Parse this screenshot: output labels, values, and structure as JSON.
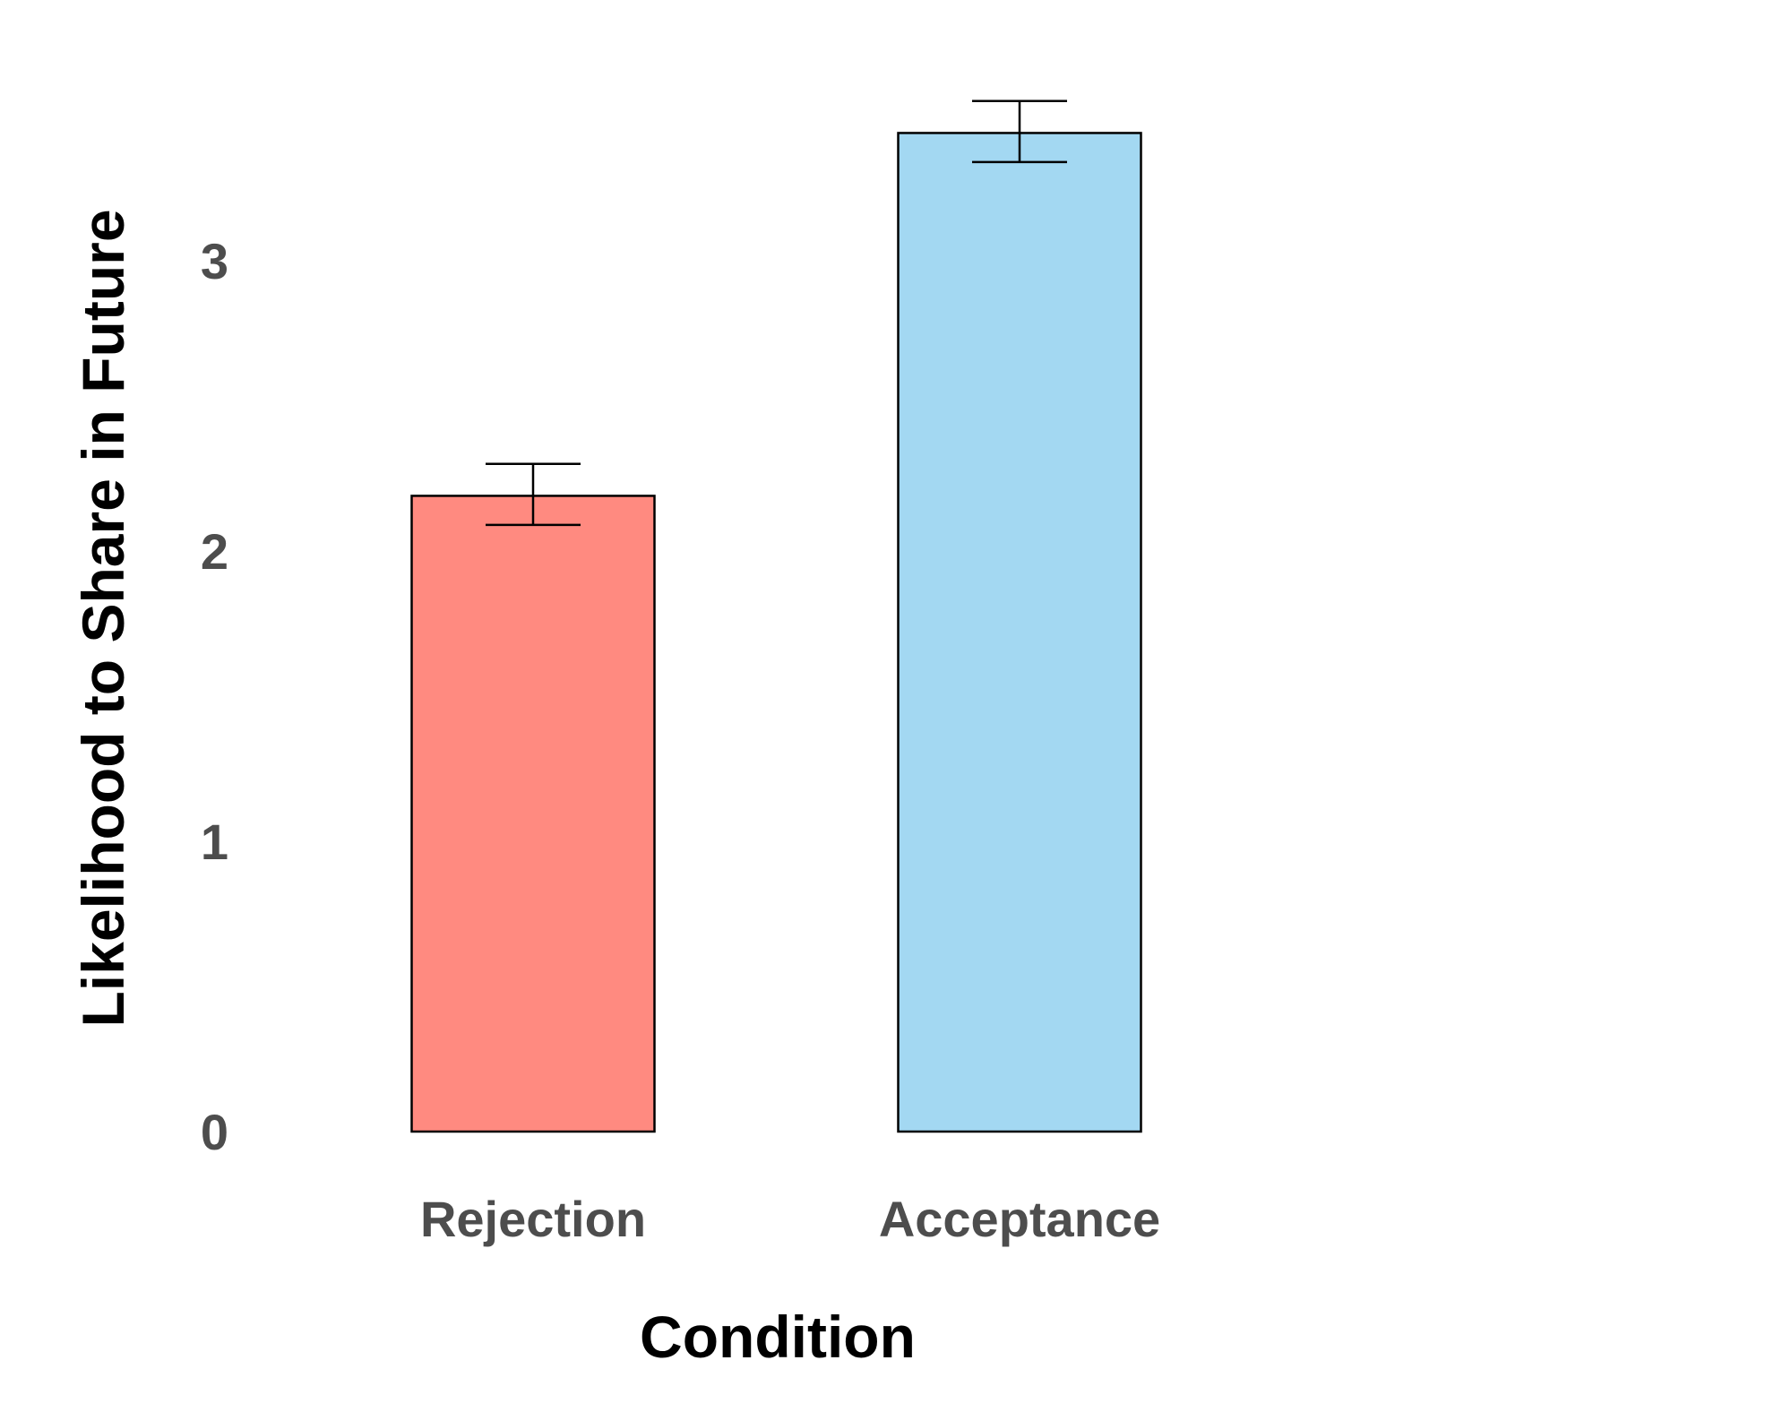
{
  "chart_data": {
    "type": "bar",
    "categories": [
      "Rejection",
      "Acceptance"
    ],
    "values": [
      2.19,
      3.44
    ],
    "error": [
      {
        "low": 2.09,
        "high": 2.3
      },
      {
        "low": 3.34,
        "high": 3.55
      }
    ],
    "colors": [
      "#ff8a80",
      "#a3d8f2"
    ],
    "xlabel": "Condition",
    "ylabel": "Likelihood to Share in Future",
    "ylim": [
      0,
      3.7
    ],
    "yticks": [
      0,
      1,
      2,
      3
    ],
    "grid": false,
    "legend": "none"
  }
}
